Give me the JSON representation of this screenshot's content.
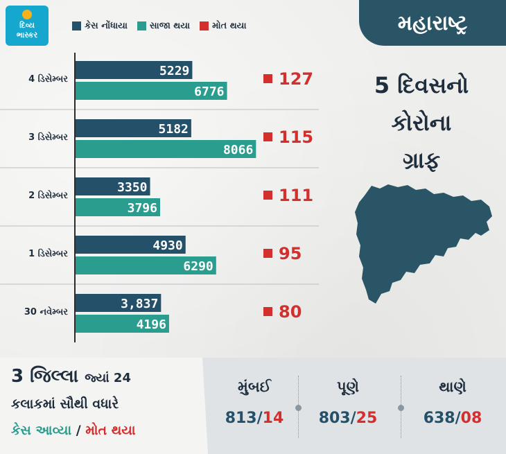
{
  "logo": {
    "line1": "દિવ્ય",
    "line2": "ભાસ્કર"
  },
  "legend": [
    {
      "label": "કેસ નોંધાયા",
      "color": "#24506a"
    },
    {
      "label": "સાજા થયા",
      "color": "#2a9d8f"
    },
    {
      "label": "મોત થયા",
      "color": "#d32f2f"
    }
  ],
  "panel": {
    "state": "મહારાષ્ટ્ર",
    "title_lines": [
      "5 દિવસનો",
      "કોરોના",
      "ગ્રાફ"
    ]
  },
  "chart_data": {
    "type": "bar",
    "orientation": "horizontal",
    "categories": [
      "4 ડિસેમ્બર",
      "3 ડિસેમ્બર",
      "2 ડિસેમ્બર",
      "1 ડિસેમ્બર",
      "30 નવેમ્બર"
    ],
    "series": [
      {
        "name": "કેસ નોંધાયા",
        "values": [
          5229,
          5182,
          3350,
          4930,
          3837
        ],
        "labels": [
          "5229",
          "5182",
          "3350",
          "4930",
          "3,837"
        ],
        "color": "#24506a"
      },
      {
        "name": "સાજા થયા",
        "values": [
          6776,
          8066,
          3796,
          6290,
          4196
        ],
        "labels": [
          "6776",
          "8066",
          "3796",
          "6290",
          "4196"
        ],
        "color": "#2a9d8f"
      },
      {
        "name": "મોત થયા",
        "values": [
          127,
          115,
          111,
          95,
          80
        ],
        "labels": [
          "127",
          "115",
          "111",
          "95",
          "80"
        ],
        "color": "#d32f2f"
      }
    ],
    "xlim": [
      0,
      9000
    ],
    "legend_position": "top"
  },
  "bottom": {
    "count_text": "3 જિલ્લા",
    "where_text": "જ્યાં 24",
    "line2": "કલાકમાં સૌથી વધારે",
    "cases_label": "કેસ આવ્યા",
    "slash": "/",
    "deaths_label": "મોત થયા",
    "cities": [
      {
        "name": "મુંબઈ",
        "cases": "813",
        "deaths": "14"
      },
      {
        "name": "પૂણે",
        "cases": "803",
        "deaths": "25"
      },
      {
        "name": "થાણે",
        "cases": "638",
        "deaths": "08"
      }
    ]
  }
}
